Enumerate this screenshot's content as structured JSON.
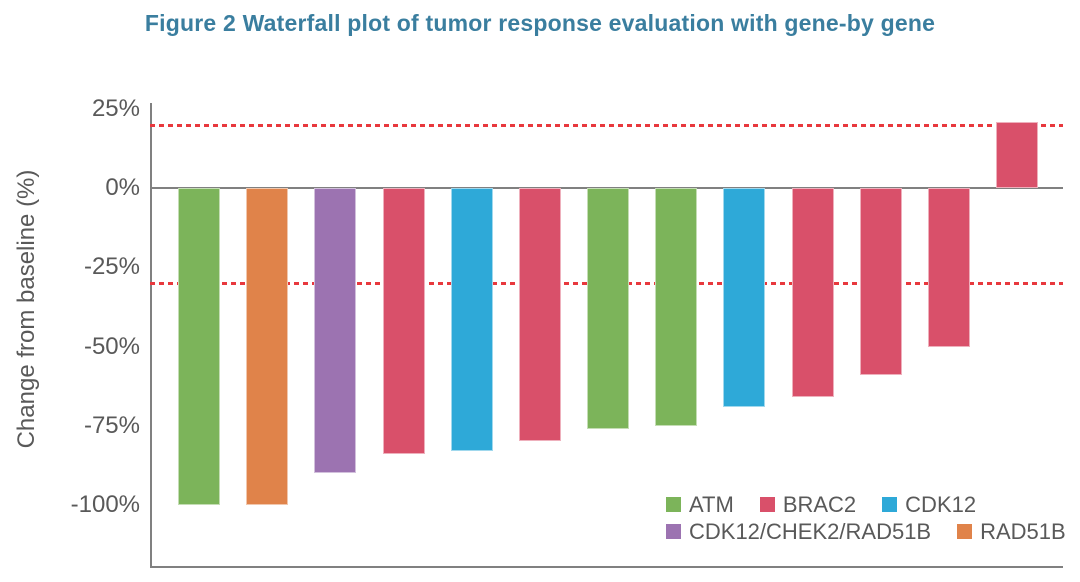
{
  "figure": {
    "title": "Figure 2 Waterfall plot of tumor response evaluation with gene-by gene",
    "title_color": "#3a7e9f"
  },
  "chart_data": {
    "type": "bar",
    "title": "Figure 2 Waterfall plot of tumor response evaluation with gene-by gene",
    "xlabel": "",
    "ylabel": "Change from baseline (%)",
    "ylim": [
      -120,
      27
    ],
    "yticks": [
      25,
      0,
      -25,
      -50,
      -75,
      -100
    ],
    "ytick_labels": [
      "25%",
      "0%",
      "-25%",
      "-50%",
      "-75%",
      "-100%"
    ],
    "grid": "off",
    "x_axis_labels": "none",
    "reference_lines": [
      {
        "value": 20,
        "style": "dashed",
        "color": "#e8383d"
      },
      {
        "value": -30,
        "style": "dashed",
        "color": "#e8383d"
      }
    ],
    "bars": [
      {
        "gene": "ATM",
        "value": -100
      },
      {
        "gene": "RAD51B",
        "value": -100
      },
      {
        "gene": "CDK12/CHEK2/RAD51B",
        "value": -90
      },
      {
        "gene": "BRAC2",
        "value": -84
      },
      {
        "gene": "CDK12",
        "value": -83
      },
      {
        "gene": "BRAC2",
        "value": -80
      },
      {
        "gene": "ATM",
        "value": -76
      },
      {
        "gene": "ATM",
        "value": -75
      },
      {
        "gene": "CDK12",
        "value": -69
      },
      {
        "gene": "BRAC2",
        "value": -66
      },
      {
        "gene": "BRAC2",
        "value": -59
      },
      {
        "gene": "BRAC2",
        "value": -50
      },
      {
        "gene": "BRAC2",
        "value": 21
      }
    ],
    "legend": {
      "position": "inside-bottom-right",
      "rows": [
        [
          {
            "label": "ATM",
            "color": "#7cb45a"
          },
          {
            "label": "BRAC2",
            "color": "#d9506a"
          },
          {
            "label": "CDK12",
            "color": "#2ea9d8"
          }
        ],
        [
          {
            "label": "CDK12/CHEK2/RAD51B",
            "color": "#9c73b1"
          },
          {
            "label": "RAD51B",
            "color": "#e0834a"
          }
        ]
      ]
    },
    "colors": {
      "ATM": "#7cb45a",
      "BRAC2": "#d9506a",
      "CDK12": "#2ea9d8",
      "CDK12/CHEK2/RAD51B": "#9c73b1",
      "RAD51B": "#e0834a",
      "axis": "#808080",
      "text": "#595959",
      "reference": "#e8383d"
    }
  }
}
